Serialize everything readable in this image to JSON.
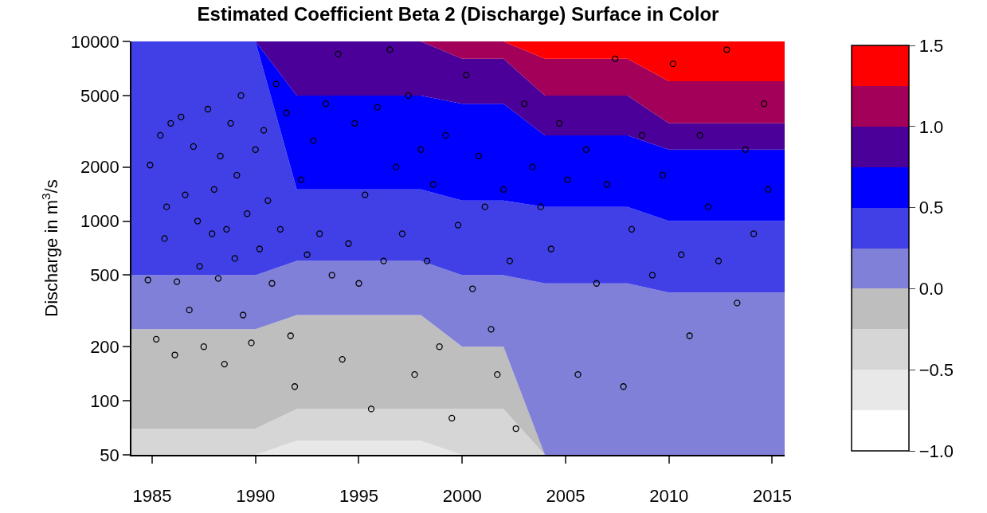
{
  "chart_data": {
    "type": "area",
    "title": "Estimated Coefficient Beta 2 (Discharge) Surface in Color",
    "ylabel": "Discharge in m$^{3}$/s",
    "x": [
      1984,
      1986,
      1988,
      1990,
      1992,
      1994,
      1996,
      1998,
      2000,
      2002,
      2004,
      2006,
      2008,
      2010,
      2012,
      2014,
      2015.6
    ],
    "colors": [
      "#ffffff",
      "#e8e8e8",
      "#d6d6d6",
      "#bebebe",
      "#8080d8",
      "#4040e6",
      "#0000ff",
      "#4b0099",
      "#a3005a",
      "#ff0000"
    ],
    "clim": [
      -1,
      1.5
    ],
    "cticks": [
      {
        "value": -1,
        "label": "−1.0"
      },
      {
        "value": -0.5,
        "label": "−0.5"
      },
      {
        "value": 0,
        "label": "0.0"
      },
      {
        "value": 0.5,
        "label": "0.5"
      },
      {
        "value": 1,
        "label": "1.0"
      },
      {
        "value": 1.5,
        "label": "1.5"
      }
    ],
    "xlim": [
      1984,
      2015.6
    ],
    "xticks": [
      1985,
      1990,
      1995,
      2000,
      2005,
      2010,
      2015
    ],
    "ylim": [
      50,
      10000
    ],
    "yticks": [
      50,
      100,
      200,
      500,
      1000,
      2000,
      5000,
      10000
    ],
    "log": "y",
    "series": [
      {
        "color": "#e8e8e8",
        "values": [
          50,
          50,
          50,
          50,
          60,
          60,
          60,
          60,
          50,
          50,
          50,
          50,
          50,
          50,
          50,
          50,
          50
        ]
      },
      {
        "color": "#d6d6d6",
        "values": [
          70,
          70,
          70,
          70,
          90,
          90,
          90,
          90,
          90,
          90,
          50,
          50,
          50,
          50,
          50,
          50,
          50
        ]
      },
      {
        "color": "#bebebe",
        "values": [
          250,
          250,
          250,
          250,
          300,
          300,
          300,
          300,
          200,
          200,
          50,
          50,
          50,
          50,
          50,
          50,
          50
        ]
      },
      {
        "color": "#8080d8",
        "values": [
          500,
          500,
          500,
          500,
          600,
          600,
          600,
          600,
          500,
          500,
          450,
          450,
          450,
          400,
          400,
          400,
          400
        ]
      },
      {
        "color": "#4040e6",
        "values": [
          10000,
          10000,
          10000,
          10000,
          1500,
          1500,
          1500,
          1500,
          1300,
          1300,
          1200,
          1200,
          1200,
          1000,
          1000,
          1000,
          1000
        ]
      },
      {
        "color": "#0000ff",
        "values": [
          10000,
          10000,
          10000,
          10000,
          5000,
          5000,
          5000,
          5000,
          4500,
          4500,
          3000,
          3000,
          3000,
          2500,
          2500,
          2500,
          2500
        ]
      },
      {
        "color": "#4b0099",
        "values": [
          10000,
          10000,
          10000,
          10000,
          10000,
          10000,
          10000,
          10000,
          8000,
          8000,
          5000,
          5000,
          5000,
          3500,
          3500,
          3500,
          3500
        ]
      },
      {
        "color": "#a3005a",
        "values": [
          10000,
          10000,
          10000,
          10000,
          10000,
          10000,
          10000,
          10000,
          10000,
          10000,
          8000,
          8000,
          8000,
          6000,
          6000,
          6000,
          6000
        ]
      },
      {
        "color": "#ff0000",
        "values": [
          10000,
          10000,
          10000,
          10000,
          10000,
          10000,
          10000,
          10000,
          10000,
          10000,
          10000,
          10000,
          10000,
          10000,
          10000,
          10000,
          10000
        ]
      },
      {
        "type": "scatter",
        "marker": "circle",
        "color": "#000000",
        "x": [
          1984.8,
          1984.9,
          1985.2,
          1985.4,
          1985.6,
          1985.7,
          1985.9,
          1986.1,
          1986.2,
          1986.4,
          1986.6,
          1986.8,
          1987.0,
          1987.2,
          1987.3,
          1987.5,
          1987.7,
          1987.9,
          1988.0,
          1988.2,
          1988.3,
          1988.5,
          1988.6,
          1988.8,
          1989.0,
          1989.1,
          1989.3,
          1989.4,
          1989.6,
          1989.8,
          1990.0,
          1990.2,
          1990.4,
          1990.6,
          1990.8,
          1991.0,
          1991.2,
          1991.5,
          1991.7,
          1991.9,
          1992.2,
          1992.5,
          1992.8,
          1993.1,
          1993.4,
          1993.7,
          1994.0,
          1994.2,
          1994.5,
          1994.8,
          1995.0,
          1995.3,
          1995.6,
          1995.9,
          1996.2,
          1996.5,
          1996.8,
          1997.1,
          1997.4,
          1997.7,
          1998.0,
          1998.3,
          1998.6,
          1998.9,
          1999.2,
          1999.5,
          1999.8,
          2000.2,
          2000.5,
          2000.8,
          2001.1,
          2001.4,
          2001.7,
          2002.0,
          2002.3,
          2002.6,
          2003.0,
          2003.4,
          2003.8,
          2004.3,
          2004.7,
          2005.1,
          2005.6,
          2006.0,
          2006.5,
          2007.0,
          2007.4,
          2007.8,
          2008.2,
          2008.7,
          2009.2,
          2009.7,
          2010.2,
          2010.6,
          2011.0,
          2011.5,
          2011.9,
          2012.4,
          2012.8,
          2013.3,
          2013.7,
          2014.1,
          2014.6,
          2014.8
        ],
        "values": [
          470,
          2050,
          220,
          3000,
          800,
          1200,
          3500,
          180,
          460,
          3800,
          1400,
          320,
          2600,
          1000,
          560,
          200,
          4200,
          850,
          1500,
          480,
          2300,
          160,
          900,
          3500,
          620,
          1800,
          5000,
          300,
          1100,
          210,
          2500,
          700,
          3200,
          1300,
          450,
          5800,
          900,
          4000,
          230,
          120,
          1700,
          650,
          2800,
          850,
          4500,
          500,
          8500,
          170,
          750,
          3500,
          450,
          1400,
          90,
          4300,
          600,
          9000,
          2000,
          850,
          5000,
          140,
          2500,
          600,
          1600,
          200,
          3000,
          80,
          950,
          6500,
          420,
          2300,
          1200,
          250,
          140,
          1500,
          600,
          70,
          4500,
          2000,
          1200,
          700,
          3500,
          1700,
          140,
          2500,
          450,
          1600,
          8000,
          120,
          900,
          3000,
          500,
          1800,
          7500,
          650,
          230,
          3000,
          1200,
          600,
          9000,
          350,
          2500,
          850,
          4500,
          1500
        ]
      }
    ]
  }
}
